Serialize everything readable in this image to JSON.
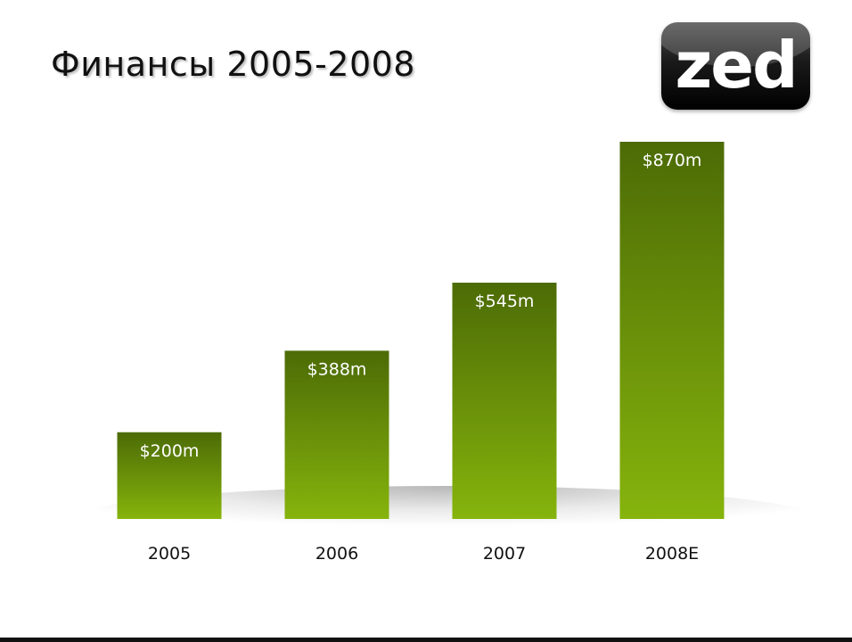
{
  "title": "Финансы 2005-2008",
  "logo": {
    "text": "zed"
  },
  "colors": {
    "bar_top": "#4c6b06",
    "bar_bottom": "#86b40c",
    "label": "#ffffff",
    "axis_text": "#111111"
  },
  "chart_data": {
    "type": "bar",
    "categories": [
      "2005",
      "2006",
      "2007",
      "2008E"
    ],
    "values": [
      200,
      388,
      545,
      870
    ],
    "data_labels": [
      "$200m",
      "$388m",
      "$545m",
      "$870m"
    ],
    "title": "",
    "xlabel": "",
    "ylabel": "",
    "ylim": [
      0,
      870
    ],
    "grid": false,
    "legend": "none"
  }
}
